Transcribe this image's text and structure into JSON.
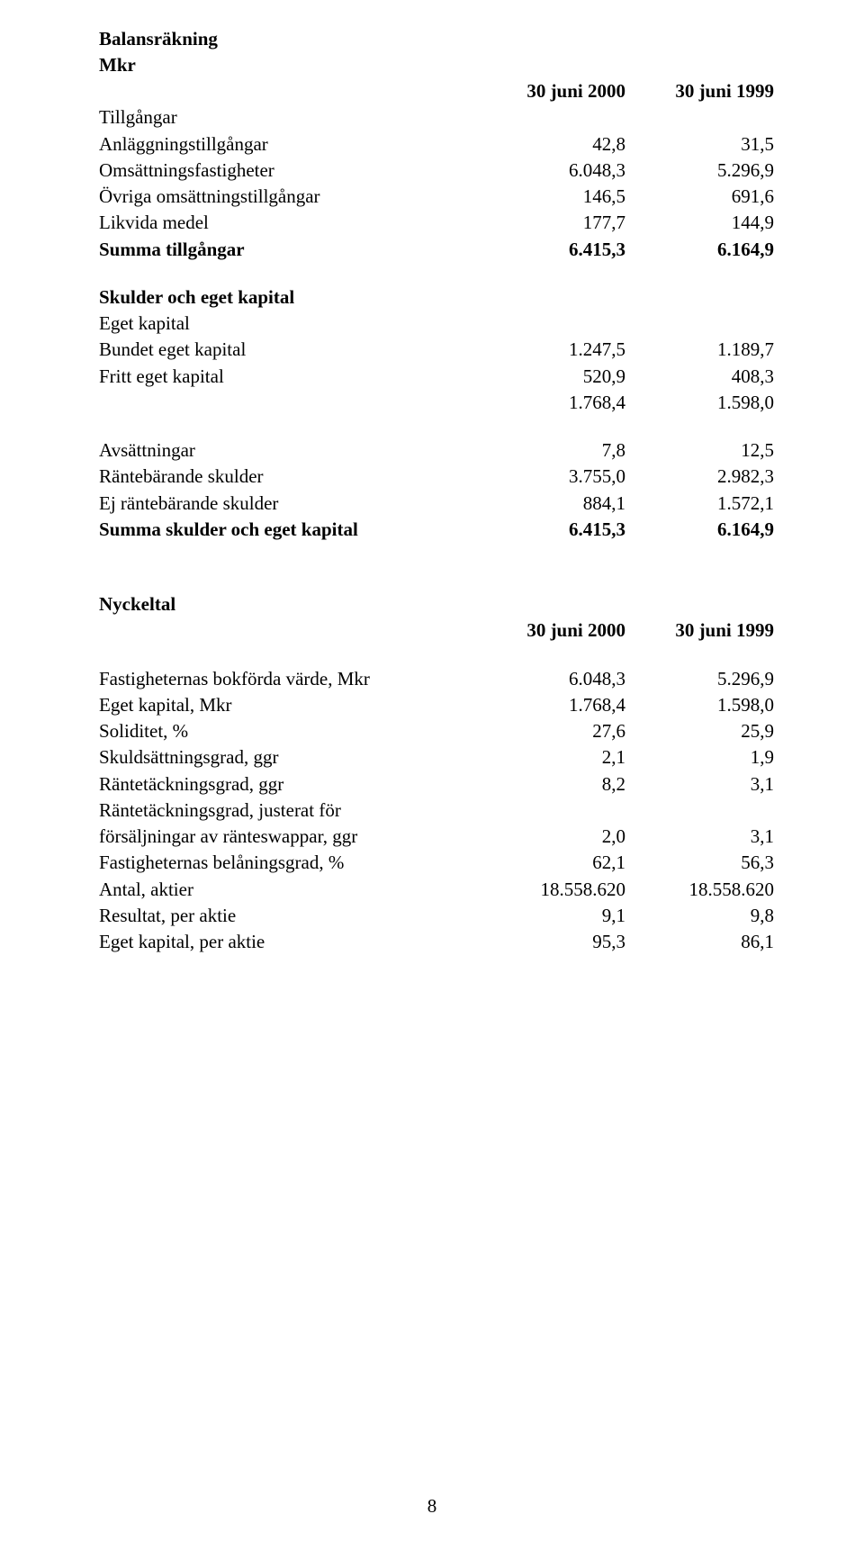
{
  "balance": {
    "title": "Balansräkning",
    "unit": "Mkr",
    "col1": "30 juni 2000",
    "col2": "30 juni 1999",
    "assets_header": "Tillgångar",
    "rows_assets": [
      {
        "label": "Anläggningstillgångar",
        "v1": "42,8",
        "v2": "31,5"
      },
      {
        "label": "Omsättningsfastigheter",
        "v1": "6.048,3",
        "v2": "5.296,9"
      },
      {
        "label": "Övriga omsättningstillgångar",
        "v1": "146,5",
        "v2": "691,6"
      },
      {
        "label": "Likvida medel",
        "v1": "177,7",
        "v2": "144,9"
      }
    ],
    "assets_total": {
      "label": "Summa tillgångar",
      "v1": "6.415,3",
      "v2": "6.164,9"
    },
    "eq_header": "Skulder och eget kapital",
    "eq_sub": "Eget kapital",
    "rows_eq": [
      {
        "label": "Bundet eget kapital",
        "v1": "1.247,5",
        "v2": "1.189,7"
      },
      {
        "label": "Fritt eget kapital",
        "v1": "520,9",
        "v2": "408,3"
      }
    ],
    "eq_subtotal": {
      "v1": "1.768,4",
      "v2": "1.598,0"
    },
    "rows_liab": [
      {
        "label": "Avsättningar",
        "v1": "7,8",
        "v2": "12,5"
      },
      {
        "label": "Räntebärande skulder",
        "v1": "3.755,0",
        "v2": "2.982,3"
      },
      {
        "label": "Ej räntebärande skulder",
        "v1": "884,1",
        "v2": "1.572,1"
      }
    ],
    "liab_total": {
      "label": "Summa skulder och eget kapital",
      "v1": "6.415,3",
      "v2": "6.164,9"
    }
  },
  "ratios": {
    "title": "Nyckeltal",
    "col1": "30 juni 2000",
    "col2": "30 juni 1999",
    "rows": [
      {
        "label": "Fastigheternas bokförda värde, Mkr",
        "v1": "6.048,3",
        "v2": "5.296,9"
      },
      {
        "label": "Eget kapital, Mkr",
        "v1": "1.768,4",
        "v2": "1.598,0"
      },
      {
        "label": "Soliditet, %",
        "v1": "27,6",
        "v2": "25,9"
      },
      {
        "label": "Skuldsättningsgrad, ggr",
        "v1": "2,1",
        "v2": "1,9"
      },
      {
        "label": "Räntetäckningsgrad, ggr",
        "v1": "8,2",
        "v2": "3,1"
      }
    ],
    "wrap1": "Räntetäckningsgrad, justerat för",
    "wrap2": {
      "label": "försäljningar av ränteswappar, ggr",
      "v1": "2,0",
      "v2": "3,1"
    },
    "rows2": [
      {
        "label": "Fastigheternas belåningsgrad, %",
        "v1": "62,1",
        "v2": "56,3"
      },
      {
        "label": "Antal, aktier",
        "v1": "18.558.620",
        "v2": "18.558.620"
      },
      {
        "label": "Resultat, per aktie",
        "v1": "9,1",
        "v2": "9,8"
      },
      {
        "label": "Eget kapital, per aktie",
        "v1": "95,3",
        "v2": "86,1"
      }
    ]
  },
  "page": "8"
}
